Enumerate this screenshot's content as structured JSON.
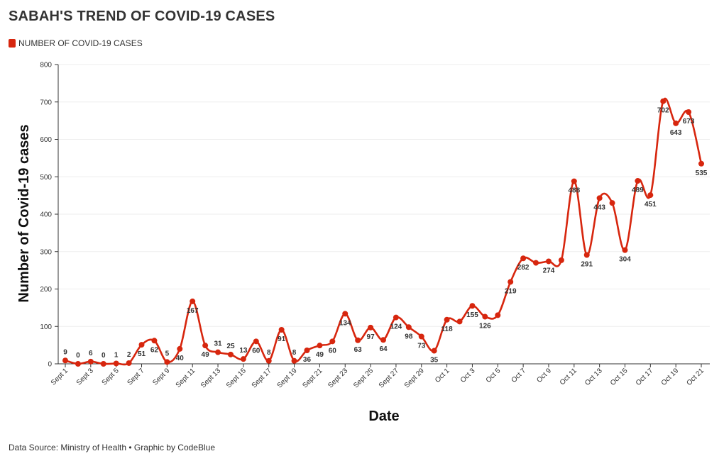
{
  "title": "SABAH'S TREND OF COVID-19 CASES",
  "footer": "Data Source: Ministry of Health • Graphic by CodeBlue",
  "colors": {
    "series": "#d7260e",
    "grid": "#eeeeee",
    "axis": "#333333"
  },
  "chart_data": {
    "type": "line",
    "title": "SABAH'S TREND OF COVID-19 CASES",
    "xlabel": "Date",
    "ylabel": "Number of Covid-19 cases",
    "ylim": [
      0,
      800
    ],
    "yticks": [
      0,
      100,
      200,
      300,
      400,
      500,
      600,
      700,
      800
    ],
    "grid": true,
    "legend": "top-left",
    "x": [
      "Sept 1",
      "Sept 2",
      "Sept 3",
      "Sept 4",
      "Sept 5",
      "Sept 6",
      "Sept 7",
      "Sept 8",
      "Sept 9",
      "Sept 10",
      "Sept 11",
      "Sept 12",
      "Sept 13",
      "Sept 14",
      "Sept 15",
      "Sept 16",
      "Sept 17",
      "Sept 18",
      "Sept 19",
      "Sept 20",
      "Sept 21",
      "Sept 22",
      "Sept 23",
      "Sept 24",
      "Sept 25",
      "Sept 26",
      "Sept 27",
      "Sept 28",
      "Sept 29",
      "Sept 30",
      "Oct 1",
      "Oct 2",
      "Oct 3",
      "Oct 4",
      "Oct 5",
      "Oct 6",
      "Oct 7",
      "Oct 8",
      "Oct 9",
      "Oct 10",
      "Oct 11",
      "Oct 12",
      "Oct 13",
      "Oct 14",
      "Oct 15",
      "Oct 16",
      "Oct 17",
      "Oct 18",
      "Oct 19",
      "Oct 20",
      "Oct 21"
    ],
    "xticks": [
      "Sept 1",
      "Sept 3",
      "Sept 5",
      "Sept 7",
      "Sept 9",
      "Sept 11",
      "Sept 13",
      "Sept 15",
      "Sept 17",
      "Sept 19",
      "Sept 21",
      "Sept 23",
      "Sept 25",
      "Sept 27",
      "Sept 29",
      "Oct 1",
      "Oct 3",
      "Oct 5",
      "Oct 7",
      "Oct 9",
      "Oct 11",
      "Oct 13",
      "Oct 15",
      "Oct 17",
      "Oct 19",
      "Oct 21"
    ],
    "series": [
      {
        "name": "NUMBER OF COVID-19 CASES",
        "values": [
          9,
          0,
          6,
          0,
          1,
          2,
          51,
          62,
          5,
          40,
          167,
          49,
          31,
          25,
          13,
          60,
          8,
          91,
          8,
          36,
          49,
          60,
          134,
          63,
          97,
          64,
          124,
          98,
          73,
          35,
          118,
          113,
          155,
          126,
          130,
          219,
          282,
          270,
          274,
          277,
          488,
          291,
          443,
          430,
          304,
          489,
          451,
          702,
          643,
          673,
          535
        ]
      }
    ],
    "data_labels": [
      {
        "index": 0,
        "text": "9",
        "pos": "above"
      },
      {
        "index": 1,
        "text": "0",
        "pos": "above"
      },
      {
        "index": 2,
        "text": "6",
        "pos": "above"
      },
      {
        "index": 3,
        "text": "0",
        "pos": "above"
      },
      {
        "index": 4,
        "text": "1",
        "pos": "above"
      },
      {
        "index": 5,
        "text": "2",
        "pos": "above"
      },
      {
        "index": 6,
        "text": "51",
        "pos": "below"
      },
      {
        "index": 7,
        "text": "62",
        "pos": "below"
      },
      {
        "index": 8,
        "text": "5",
        "pos": "above"
      },
      {
        "index": 9,
        "text": "40",
        "pos": "below"
      },
      {
        "index": 10,
        "text": "167",
        "pos": "below"
      },
      {
        "index": 11,
        "text": "49",
        "pos": "below"
      },
      {
        "index": 12,
        "text": "31",
        "pos": "above"
      },
      {
        "index": 13,
        "text": "25",
        "pos": "above"
      },
      {
        "index": 14,
        "text": "13",
        "pos": "above"
      },
      {
        "index": 15,
        "text": "60",
        "pos": "below"
      },
      {
        "index": 16,
        "text": "8",
        "pos": "above"
      },
      {
        "index": 17,
        "text": "91",
        "pos": "below"
      },
      {
        "index": 18,
        "text": "8",
        "pos": "above"
      },
      {
        "index": 19,
        "text": "36",
        "pos": "below"
      },
      {
        "index": 20,
        "text": "49",
        "pos": "below"
      },
      {
        "index": 21,
        "text": "60",
        "pos": "below"
      },
      {
        "index": 22,
        "text": "134",
        "pos": "below"
      },
      {
        "index": 23,
        "text": "63",
        "pos": "below"
      },
      {
        "index": 24,
        "text": "97",
        "pos": "below"
      },
      {
        "index": 25,
        "text": "64",
        "pos": "below"
      },
      {
        "index": 26,
        "text": "124",
        "pos": "below"
      },
      {
        "index": 27,
        "text": "98",
        "pos": "below"
      },
      {
        "index": 28,
        "text": "73",
        "pos": "below"
      },
      {
        "index": 29,
        "text": "35",
        "pos": "below"
      },
      {
        "index": 30,
        "text": "118",
        "pos": "below"
      },
      {
        "index": 32,
        "text": "155",
        "pos": "below"
      },
      {
        "index": 33,
        "text": "126",
        "pos": "below"
      },
      {
        "index": 35,
        "text": "219",
        "pos": "below"
      },
      {
        "index": 36,
        "text": "282",
        "pos": "below"
      },
      {
        "index": 38,
        "text": "274",
        "pos": "below"
      },
      {
        "index": 40,
        "text": "488",
        "pos": "below"
      },
      {
        "index": 41,
        "text": "291",
        "pos": "below"
      },
      {
        "index": 42,
        "text": "443",
        "pos": "below"
      },
      {
        "index": 44,
        "text": "304",
        "pos": "below"
      },
      {
        "index": 45,
        "text": "489",
        "pos": "below"
      },
      {
        "index": 46,
        "text": "451",
        "pos": "below"
      },
      {
        "index": 47,
        "text": "702",
        "pos": "below"
      },
      {
        "index": 48,
        "text": "643",
        "pos": "below"
      },
      {
        "index": 49,
        "text": "673",
        "pos": "below"
      },
      {
        "index": 50,
        "text": "535",
        "pos": "below"
      }
    ]
  }
}
